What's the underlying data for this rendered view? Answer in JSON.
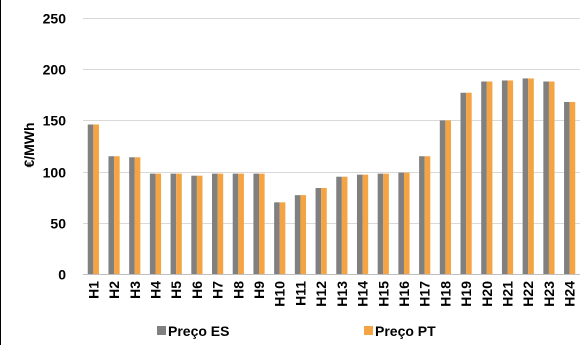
{
  "chart_data": {
    "type": "bar",
    "title": "",
    "xlabel": "",
    "ylabel": "€/MWh",
    "ylim": [
      0,
      250
    ],
    "yticks": [
      0,
      50,
      100,
      150,
      200,
      250
    ],
    "grid": true,
    "legend_position": "bottom",
    "categories": [
      "H1",
      "H2",
      "H3",
      "H4",
      "H5",
      "H6",
      "H7",
      "H8",
      "H9",
      "H10",
      "H11",
      "H12",
      "H13",
      "H14",
      "H15",
      "H16",
      "H17",
      "H18",
      "H19",
      "H20",
      "H21",
      "H22",
      "H23",
      "H24"
    ],
    "series": [
      {
        "name": "Preço ES",
        "color": "#808080",
        "values": [
          146,
          115,
          114,
          98,
          98,
          96,
          98,
          98,
          98,
          70,
          77,
          84,
          95,
          97,
          98,
          99,
          115,
          150,
          177,
          188,
          189,
          191,
          188,
          168
        ]
      },
      {
        "name": "Preço PT",
        "color": "#F4A443",
        "values": [
          146,
          115,
          114,
          98,
          98,
          96,
          98,
          98,
          98,
          70,
          77,
          84,
          95,
          97,
          98,
          99,
          115,
          150,
          177,
          188,
          189,
          191,
          188,
          168
        ]
      }
    ]
  }
}
